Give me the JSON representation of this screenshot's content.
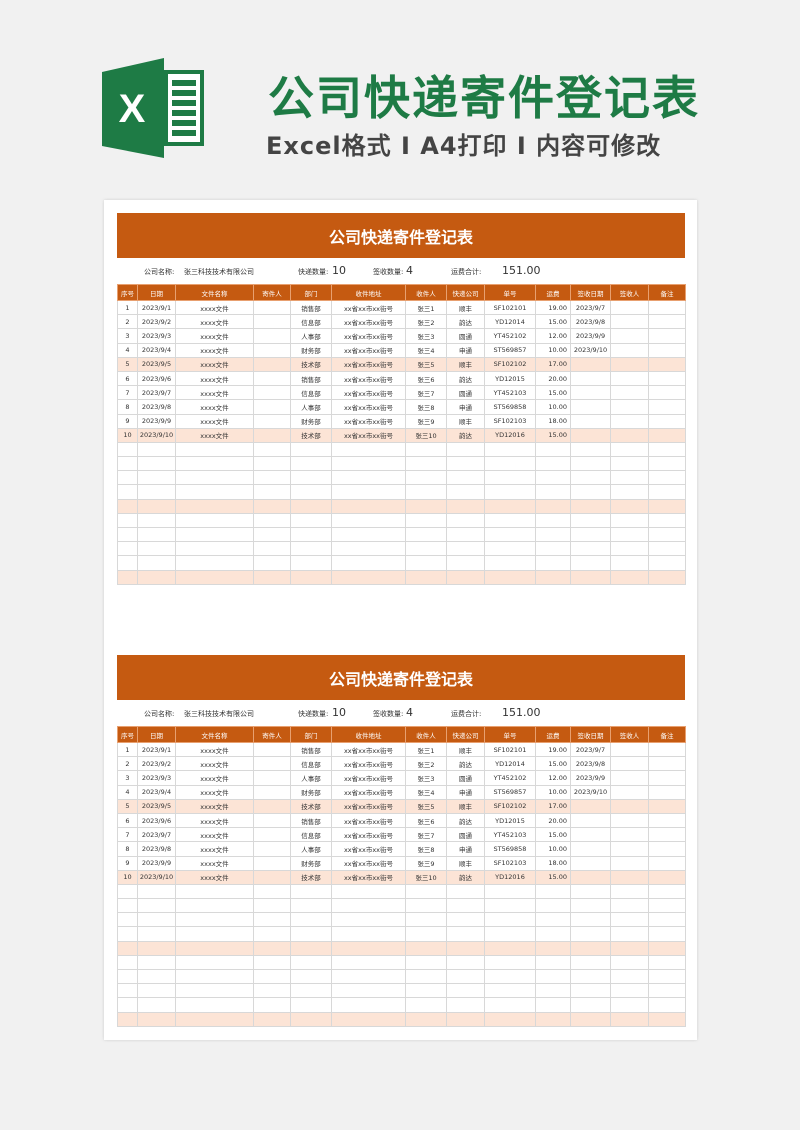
{
  "banner": {
    "title": "公司快递寄件登记表",
    "subtitle": "Excel格式 Ⅰ A4打印 Ⅰ 内容可修改",
    "logo_icon": "excel-icon",
    "logo_letter": "X",
    "brand_color": "#1e7b45",
    "accent_color": "#c55a11"
  },
  "sheet": {
    "title": "公司快递寄件登记表",
    "company_label": "公司名称:",
    "company": "张三科技技术有限公司",
    "count_label": "快递数量:",
    "count": "10",
    "signed_label": "签收数量:",
    "signed": "4",
    "fee_label": "运费合计:",
    "fee_total": "151.00",
    "columns": [
      "序号",
      "日期",
      "文件名称",
      "寄件人",
      "部门",
      "收件地址",
      "收件人",
      "快递公司",
      "单号",
      "运费",
      "签收日期",
      "签收人",
      "备注"
    ],
    "rows": [
      [
        "1",
        "2023/9/1",
        "xxxx文件",
        "",
        "销售部",
        "xx省xx市xx街号",
        "张三1",
        "顺丰",
        "SF102101",
        "19.00",
        "2023/9/7",
        "",
        ""
      ],
      [
        "2",
        "2023/9/2",
        "xxxx文件",
        "",
        "信息部",
        "xx省xx市xx街号",
        "张三2",
        "韵达",
        "YD12014",
        "15.00",
        "2023/9/8",
        "",
        ""
      ],
      [
        "3",
        "2023/9/3",
        "xxxx文件",
        "",
        "人事部",
        "xx省xx市xx街号",
        "张三3",
        "圆通",
        "YT452102",
        "12.00",
        "2023/9/9",
        "",
        ""
      ],
      [
        "4",
        "2023/9/4",
        "xxxx文件",
        "",
        "财务部",
        "xx省xx市xx街号",
        "张三4",
        "申通",
        "ST569857",
        "10.00",
        "2023/9/10",
        "",
        ""
      ],
      [
        "5",
        "2023/9/5",
        "xxxx文件",
        "",
        "技术部",
        "xx省xx市xx街号",
        "张三5",
        "顺丰",
        "SF102102",
        "17.00",
        "",
        "",
        ""
      ],
      [
        "6",
        "2023/9/6",
        "xxxx文件",
        "",
        "销售部",
        "xx省xx市xx街号",
        "张三6",
        "韵达",
        "YD12015",
        "20.00",
        "",
        "",
        ""
      ],
      [
        "7",
        "2023/9/7",
        "xxxx文件",
        "",
        "信息部",
        "xx省xx市xx街号",
        "张三7",
        "圆通",
        "YT452103",
        "15.00",
        "",
        "",
        ""
      ],
      [
        "8",
        "2023/9/8",
        "xxxx文件",
        "",
        "人事部",
        "xx省xx市xx街号",
        "张三8",
        "申通",
        "ST569858",
        "10.00",
        "",
        "",
        ""
      ],
      [
        "9",
        "2023/9/9",
        "xxxx文件",
        "",
        "财务部",
        "xx省xx市xx街号",
        "张三9",
        "顺丰",
        "SF102103",
        "18.00",
        "",
        "",
        ""
      ],
      [
        "10",
        "2023/9/10",
        "xxxx文件",
        "",
        "技术部",
        "xx省xx市xx街号",
        "张三10",
        "韵达",
        "YD12016",
        "15.00",
        "",
        "",
        ""
      ]
    ],
    "blank_rows": 10,
    "highlight_every": 5
  }
}
